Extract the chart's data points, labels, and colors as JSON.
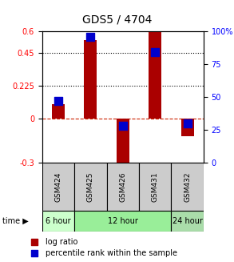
{
  "title": "GDS5 / 4704",
  "samples": [
    "GSM424",
    "GSM425",
    "GSM426",
    "GSM431",
    "GSM432"
  ],
  "log_ratios": [
    0.1,
    0.54,
    -0.35,
    0.6,
    -0.12
  ],
  "percentile_ranks": [
    0.47,
    0.96,
    0.28,
    0.84,
    0.3
  ],
  "ylim_left": [
    -0.3,
    0.6
  ],
  "ylim_right": [
    0,
    100
  ],
  "yticks_left": [
    -0.3,
    0,
    0.225,
    0.45,
    0.6
  ],
  "yticks_right": [
    0,
    25,
    50,
    75,
    100
  ],
  "hlines_dotted": [
    0.225,
    0.45
  ],
  "hline_dashed": 0,
  "bar_color": "#AA0000",
  "dot_color": "#0000CC",
  "time_groups": [
    {
      "label": "6 hour",
      "samples": [
        0
      ],
      "color": "#CCFFCC"
    },
    {
      "label": "12 hour",
      "samples": [
        1,
        2,
        3
      ],
      "color": "#99EE99"
    },
    {
      "label": "24 hour",
      "samples": [
        4
      ],
      "color": "#AADDAA"
    }
  ],
  "sample_bg_color": "#CCCCCC",
  "legend_log_ratio_color": "#AA0000",
  "legend_percentile_color": "#0000CC",
  "bar_width": 0.4,
  "dot_size": 60
}
